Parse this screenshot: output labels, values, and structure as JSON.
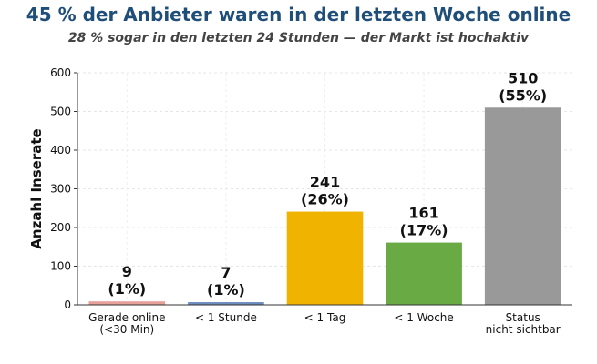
{
  "chart_data": {
    "type": "bar",
    "title": "45 % der Anbieter waren in der letzten Woche online",
    "subtitle": "28 % sogar in den letzten 24 Stunden — der Markt ist hochaktiv",
    "xlabel": "",
    "ylabel": "Anzahl Inserate",
    "ylim": [
      0,
      600
    ],
    "yticks": [
      "0",
      "100",
      "200",
      "300",
      "400",
      "500",
      "600"
    ],
    "grid": true,
    "categories": [
      [
        "Gerade online",
        "(<30 Min)"
      ],
      [
        "< 1 Stunde"
      ],
      [
        "< 1 Tag"
      ],
      [
        "< 1 Woche"
      ],
      [
        "Status",
        "nicht sichtbar"
      ]
    ],
    "values": [
      9,
      7,
      241,
      161,
      510
    ],
    "data_labels": [
      [
        "9",
        "(1%)"
      ],
      [
        "7",
        "(1%)"
      ],
      [
        "241",
        "(26%)"
      ],
      [
        "161",
        "(17%)"
      ],
      [
        "510",
        "(55%)"
      ]
    ],
    "colors": [
      "#e8a09a",
      "#6c8ebf",
      "#f0b400",
      "#6aaa45",
      "#999999"
    ]
  }
}
